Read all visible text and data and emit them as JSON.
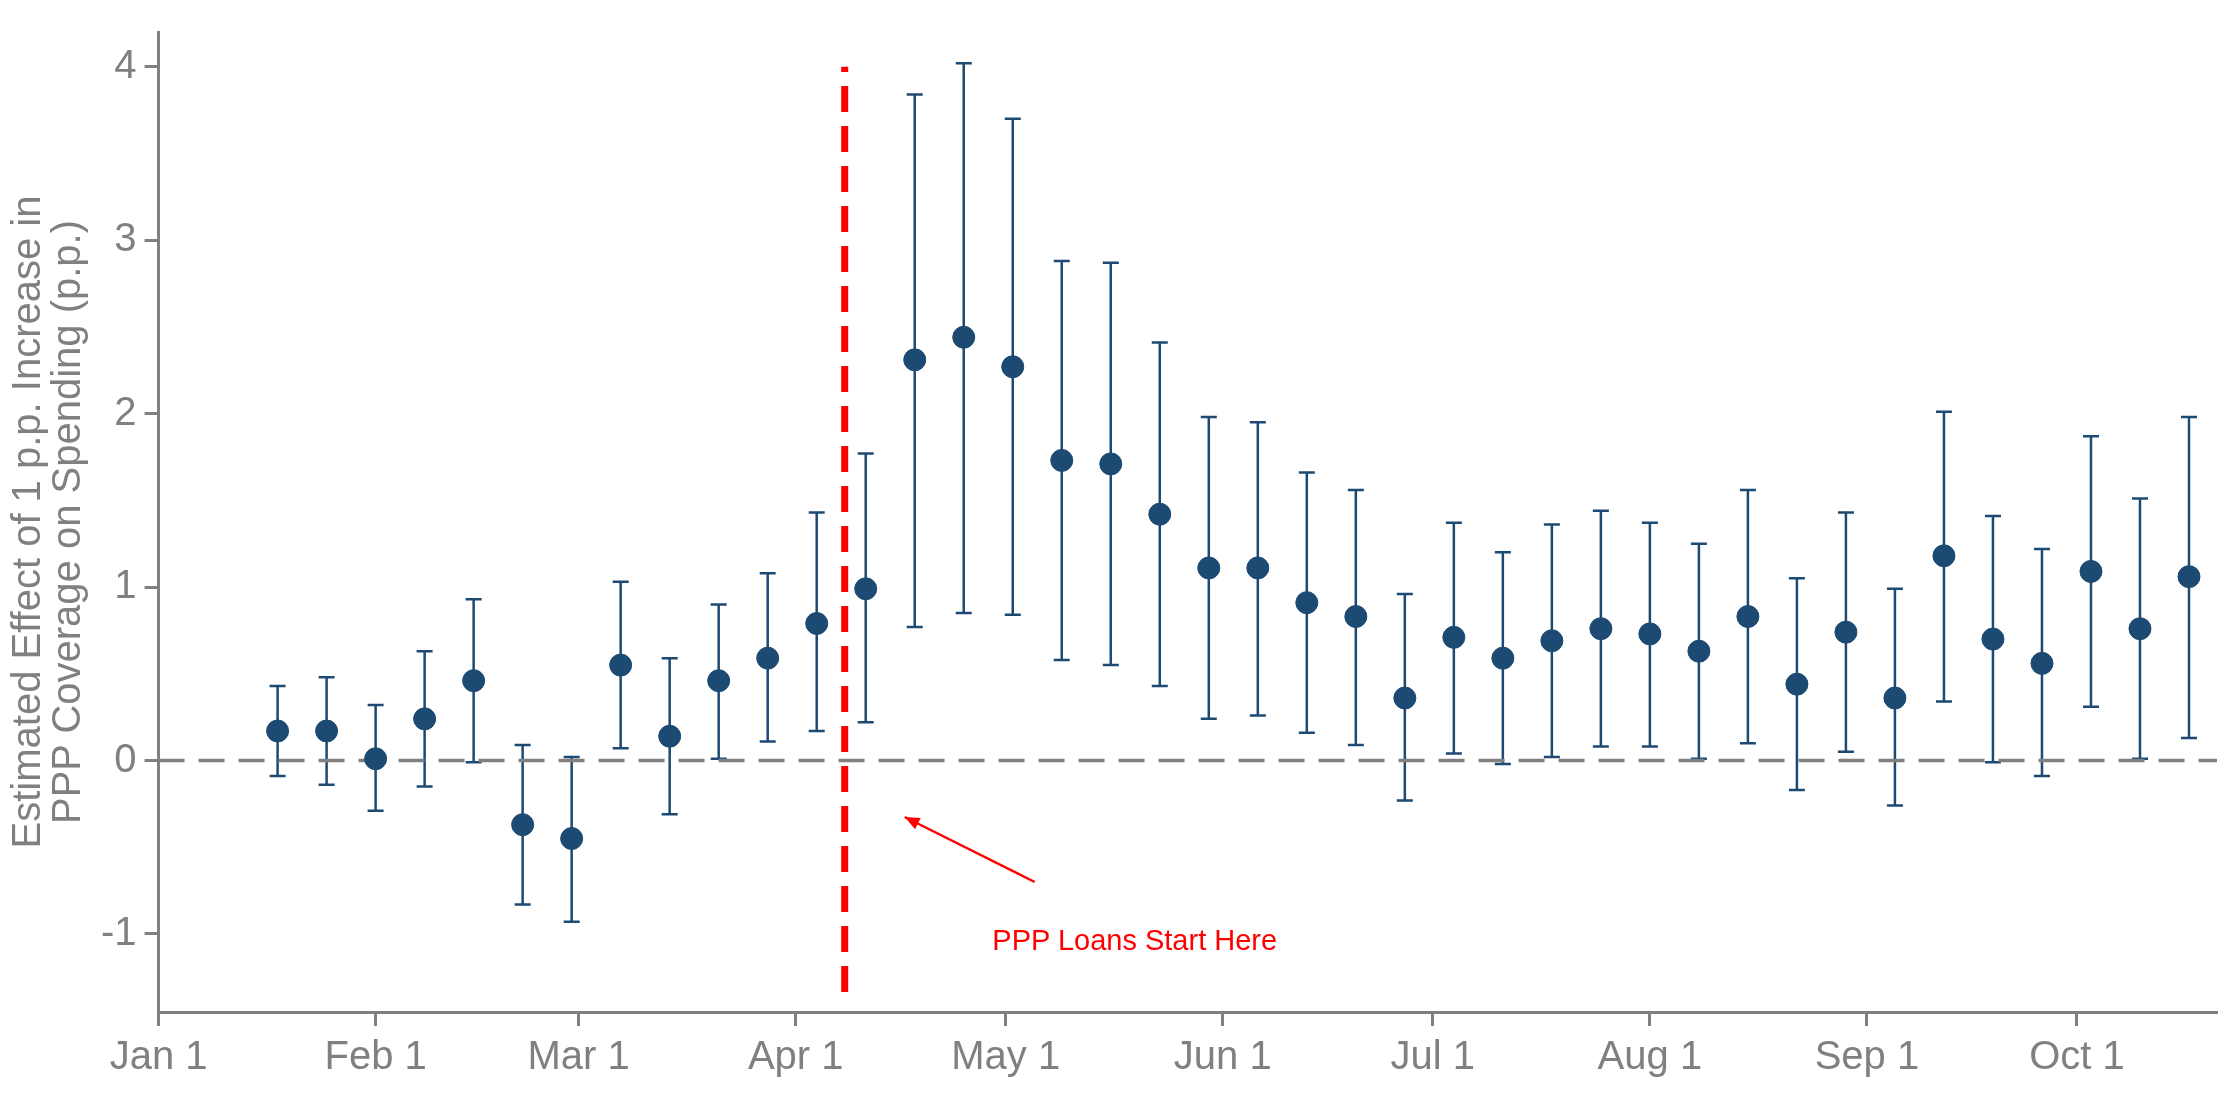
{
  "chart_data": {
    "type": "scatter",
    "ylabel": "Estimated Effect of 1 p.p. Increase in\nPPP Coverage on Spending (p.p.)",
    "x": [
      "--01-18",
      "--01-25",
      "--02-01",
      "--02-08",
      "--02-15",
      "--02-22",
      "--02-29",
      "--03-07",
      "--03-14",
      "--03-21",
      "--03-28",
      "--04-04",
      "--04-11",
      "--04-18",
      "--04-25",
      "--05-02",
      "--05-09",
      "--05-16",
      "--05-23",
      "--05-30",
      "--06-06",
      "--06-13",
      "--06-20",
      "--06-27",
      "--07-04",
      "--07-11",
      "--07-18",
      "--07-25",
      "--08-01",
      "--08-08",
      "--08-15",
      "--08-22",
      "--08-29",
      "--09-05",
      "--09-12",
      "--09-19",
      "--09-26",
      "--10-03",
      "--10-10",
      "--10-17"
    ],
    "series": [
      {
        "color": "#1c4a72",
        "values": [
          0.17,
          0.17,
          0.01,
          0.24,
          0.46,
          -0.37,
          -0.45,
          0.55,
          0.14,
          0.46,
          0.59,
          0.79,
          0.99,
          2.31,
          2.44,
          2.27,
          1.73,
          1.71,
          1.42,
          1.11,
          1.11,
          0.91,
          0.83,
          0.36,
          0.71,
          0.59,
          0.69,
          0.76,
          0.73,
          0.63,
          0.83,
          0.44,
          0.74,
          0.36,
          1.18,
          0.7,
          0.56,
          1.09,
          0.76,
          1.06
        ],
        "errors": [
          [
            -0.09,
            0.43
          ],
          [
            -0.14,
            0.48
          ],
          [
            -0.29,
            0.32
          ],
          [
            -0.15,
            0.63
          ],
          [
            -0.01,
            0.93
          ],
          [
            -0.83,
            0.09
          ],
          [
            -0.93,
            0.02
          ],
          [
            0.07,
            1.03
          ],
          [
            -0.31,
            0.59
          ],
          [
            0.01,
            0.9
          ],
          [
            0.11,
            1.08
          ],
          [
            0.17,
            1.43
          ],
          [
            0.22,
            1.77
          ],
          [
            0.77,
            3.84
          ],
          [
            0.85,
            4.02
          ],
          [
            0.84,
            3.7
          ],
          [
            0.58,
            2.88
          ],
          [
            0.55,
            2.87
          ],
          [
            0.43,
            2.41
          ],
          [
            0.24,
            1.98
          ],
          [
            0.26,
            1.95
          ],
          [
            0.16,
            1.66
          ],
          [
            0.09,
            1.56
          ],
          [
            -0.23,
            0.96
          ],
          [
            0.04,
            1.37
          ],
          [
            -0.02,
            1.2
          ],
          [
            0.02,
            1.36
          ],
          [
            0.08,
            1.44
          ],
          [
            0.08,
            1.37
          ],
          [
            0.01,
            1.25
          ],
          [
            0.1,
            1.56
          ],
          [
            -0.17,
            1.05
          ],
          [
            0.05,
            1.43
          ],
          [
            -0.26,
            0.99
          ],
          [
            0.34,
            2.01
          ],
          [
            -0.01,
            1.41
          ],
          [
            -0.09,
            1.22
          ],
          [
            0.31,
            1.87
          ],
          [
            0.01,
            1.51
          ],
          [
            0.13,
            1.98
          ]
        ]
      }
    ],
    "marker": "circle",
    "xlim": [
      "--01-01",
      "--10-21"
    ],
    "xticks": [
      {
        "value": "--01-01",
        "label": "Jan 1"
      },
      {
        "value": "--02-01",
        "label": "Feb 1"
      },
      {
        "value": "--03-01",
        "label": "Mar 1"
      },
      {
        "value": "--04-01",
        "label": "Apr 1"
      },
      {
        "value": "--05-01",
        "label": "May 1"
      },
      {
        "value": "--06-01",
        "label": "Jun 1"
      },
      {
        "value": "--07-01",
        "label": "Jul 1"
      },
      {
        "value": "--08-01",
        "label": "Aug 1"
      },
      {
        "value": "--09-01",
        "label": "Sep 1"
      },
      {
        "value": "--10-01",
        "label": "Oct 1"
      }
    ],
    "ylim": [
      -1.45,
      4.2
    ],
    "yticks": [
      -1,
      0,
      1,
      2,
      3,
      4
    ],
    "ref_lines": [
      {
        "axis": "y",
        "value": 0,
        "color": "#808080",
        "line_style": "dashed"
      },
      {
        "axis": "x",
        "value": "--04-08",
        "color": "#ff0000",
        "line_style": "dashed"
      }
    ],
    "annotations": [
      "PPP Loans Start Here"
    ],
    "legend": false
  }
}
